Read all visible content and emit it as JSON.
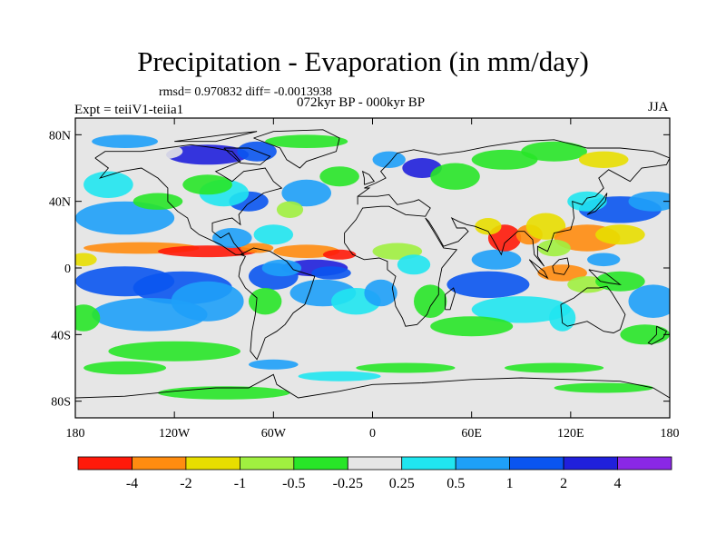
{
  "title": "Precipitation - Evaporation (in mm/day)",
  "stats": "rmsd= 0.970832 diff= -0.0013938",
  "experiment": "Expt = teiiV1-teiia1",
  "period": "072kyr BP - 000kyr BP",
  "season": "JJA",
  "map": {
    "projection": "cylindrical equidistant",
    "lon_range": [
      -180,
      180
    ],
    "lat_range": [
      -90,
      90
    ],
    "lat_ticks": [
      {
        "v": 80,
        "label": "80N"
      },
      {
        "v": 40,
        "label": "40N"
      },
      {
        "v": 0,
        "label": "0"
      },
      {
        "v": -40,
        "label": "40S"
      },
      {
        "v": -80,
        "label": "80S"
      }
    ],
    "lon_ticks": [
      {
        "v": -180,
        "label": "180"
      },
      {
        "v": -120,
        "label": "120W"
      },
      {
        "v": -60,
        "label": "60W"
      },
      {
        "v": 0,
        "label": "0"
      },
      {
        "v": 60,
        "label": "60E"
      },
      {
        "v": 120,
        "label": "120E"
      },
      {
        "v": 180,
        "label": "180"
      }
    ],
    "background_color": "#e6e6e6",
    "coastline_color": "#000000"
  },
  "colorbar": {
    "labels": [
      "-4",
      "-2",
      "-1",
      "-0.5",
      "-0.25",
      "0.25",
      "0.5",
      "1",
      "2",
      "4"
    ],
    "colors": [
      "#ff1a0a",
      "#ff8c10",
      "#e8de00",
      "#a0f040",
      "#28e628",
      "#e6e6e6",
      "#20e6f0",
      "#1ea0f8",
      "#0a55f0",
      "#2020dc",
      "#8a28e6"
    ]
  }
}
